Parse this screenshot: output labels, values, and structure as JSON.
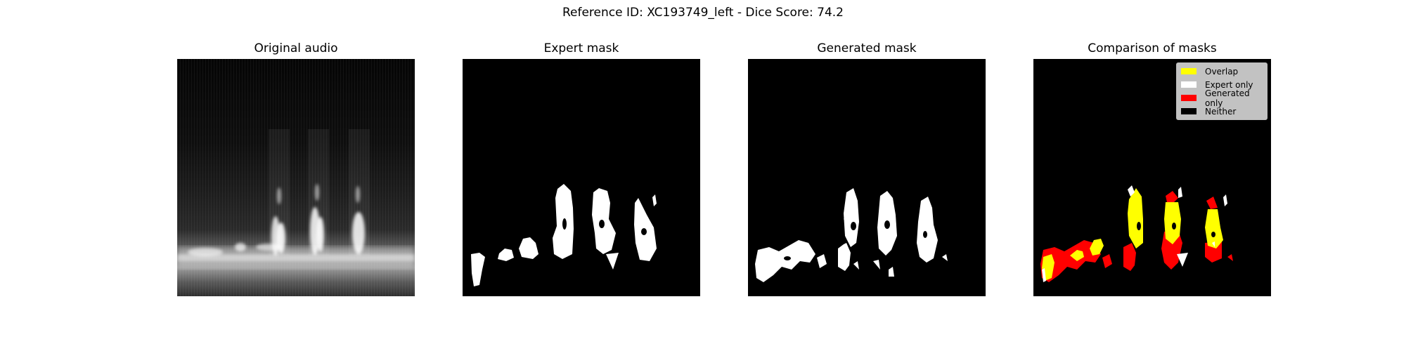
{
  "figure": {
    "suptitle": "Reference ID: XC193749_left - Dice Score: 74.2"
  },
  "panels": [
    {
      "title": "Original audio"
    },
    {
      "title": "Expert mask"
    },
    {
      "title": "Generated mask"
    },
    {
      "title": "Comparison of masks"
    }
  ],
  "legend": [
    {
      "label": "Overlap",
      "color": "#ffff00"
    },
    {
      "label": "Expert only",
      "color": "#ffffff"
    },
    {
      "label": "Generated only",
      "color": "#ff0000"
    },
    {
      "label": "Neither",
      "color": "#000000"
    }
  ],
  "colors": {
    "overlap": "#ffff00",
    "expert_only": "#ffffff",
    "generated_only": "#ff0000",
    "neither": "#000000"
  }
}
